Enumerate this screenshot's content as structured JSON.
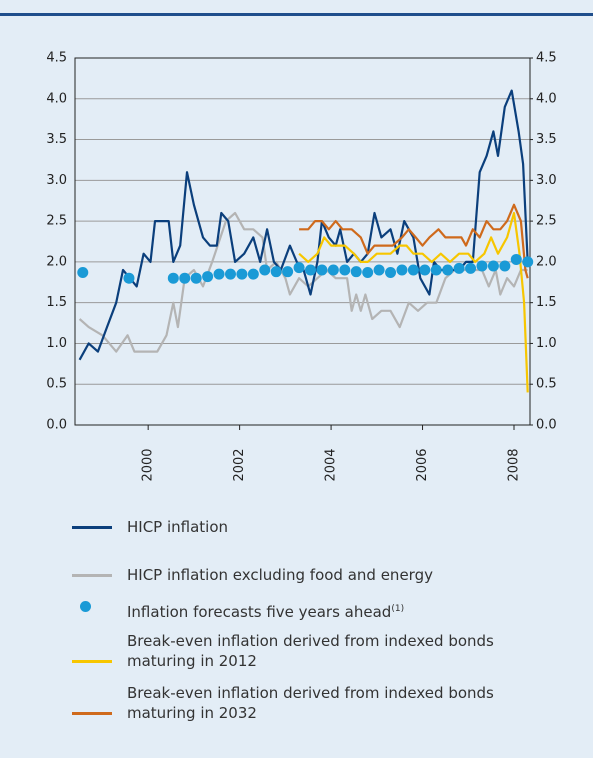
{
  "chart_data": {
    "type": "line",
    "xlim": [
      1998.4,
      2008.35
    ],
    "xticks": [
      2000,
      2002,
      2004,
      2006,
      2008
    ],
    "ylim": [
      0,
      4.5
    ],
    "yticks": [
      {
        "value": 0,
        "label": "0.0"
      },
      {
        "value": 0.5,
        "label": "0.5"
      },
      {
        "value": 1,
        "label": "1.0"
      },
      {
        "value": 1.5,
        "label": "1.5"
      },
      {
        "value": 2,
        "label": "2.0"
      },
      {
        "value": 2.5,
        "label": "2.5"
      },
      {
        "value": 3,
        "label": "3.0"
      },
      {
        "value": 3.5,
        "label": "3.5"
      },
      {
        "value": 4,
        "label": "4.0"
      },
      {
        "value": 4.5,
        "label": "4.5"
      }
    ],
    "y2lim": [
      0,
      4.5
    ],
    "y2ticks": [
      {
        "value": 0,
        "label": "0.0"
      },
      {
        "value": 0.5,
        "label": "0.5"
      },
      {
        "value": 1,
        "label": "1.0"
      },
      {
        "value": 1.5,
        "label": "1.5"
      },
      {
        "value": 2,
        "label": "2.0"
      },
      {
        "value": 2.5,
        "label": "2.5"
      },
      {
        "value": 3,
        "label": "3.0"
      },
      {
        "value": 3.5,
        "label": "3.5"
      },
      {
        "value": 4,
        "label": "4.0"
      },
      {
        "value": 4.5,
        "label": "4.5"
      }
    ],
    "grid": true,
    "series": [
      {
        "name": "HICP inflation",
        "type": "line",
        "color": "#0b3f7c",
        "x": [
          1998.5,
          1998.7,
          1998.9,
          1999.1,
          1999.3,
          1999.45,
          1999.6,
          1999.75,
          1999.9,
          2000.05,
          2000.15,
          2000.3,
          2000.45,
          2000.55,
          2000.7,
          2000.85,
          2001.0,
          2001.2,
          2001.35,
          2001.5,
          2001.6,
          2001.75,
          2001.9,
          2002.1,
          2002.3,
          2002.45,
          2002.6,
          2002.75,
          2002.9,
          2003.1,
          2003.25,
          2003.4,
          2003.55,
          2003.7,
          2003.8,
          2003.95,
          2004.1,
          2004.2,
          2004.35,
          2004.5,
          2004.65,
          2004.8,
          2004.95,
          2005.1,
          2005.3,
          2005.45,
          2005.6,
          2005.8,
          2005.95,
          2006.15,
          2006.25,
          2006.4,
          2006.6,
          2006.8,
          2006.95,
          2007.1,
          2007.25,
          2007.4,
          2007.55,
          2007.65,
          2007.8,
          2007.95,
          2008.1,
          2008.2,
          2008.3
        ],
        "values": [
          0.8,
          1.0,
          0.9,
          1.2,
          1.5,
          1.9,
          1.8,
          1.7,
          2.1,
          2.0,
          2.5,
          2.5,
          2.5,
          2.0,
          2.2,
          3.1,
          2.7,
          2.3,
          2.2,
          2.2,
          2.6,
          2.5,
          2.0,
          2.1,
          2.3,
          2.0,
          2.4,
          2.0,
          1.9,
          2.2,
          2.0,
          1.9,
          1.6,
          2.0,
          2.5,
          2.3,
          2.2,
          2.4,
          2.0,
          2.1,
          2.0,
          2.1,
          2.6,
          2.3,
          2.4,
          2.1,
          2.5,
          2.3,
          1.8,
          1.6,
          2.0,
          1.9,
          1.9,
          1.9,
          2.0,
          2.0,
          3.1,
          3.3,
          3.6,
          3.3,
          3.9,
          4.1,
          3.6,
          3.2,
          2.0
        ]
      },
      {
        "name": "HICP inflation excluding food and energy",
        "type": "line",
        "color": "#b4b4b4",
        "x": [
          1998.5,
          1998.7,
          1999.0,
          1999.3,
          1999.55,
          1999.7,
          2000.0,
          2000.2,
          2000.4,
          2000.55,
          2000.65,
          2000.8,
          2001.0,
          2001.2,
          2001.4,
          2001.7,
          2001.9,
          2002.1,
          2002.3,
          2002.5,
          2002.6,
          2002.8,
          2003.0,
          2003.1,
          2003.3,
          2003.5,
          2003.7,
          2003.9,
          2004.1,
          2004.35,
          2004.45,
          2004.55,
          2004.65,
          2004.75,
          2004.9,
          2005.1,
          2005.3,
          2005.5,
          2005.7,
          2005.9,
          2006.1,
          2006.3,
          2006.5,
          2006.7,
          2006.9,
          2007.1,
          2007.3,
          2007.45,
          2007.6,
          2007.7,
          2007.85,
          2008.0,
          2008.15,
          2008.3
        ],
        "values": [
          1.3,
          1.2,
          1.1,
          0.9,
          1.1,
          0.9,
          0.9,
          0.9,
          1.1,
          1.5,
          1.2,
          1.8,
          1.9,
          1.7,
          2.0,
          2.5,
          2.6,
          2.4,
          2.4,
          2.3,
          1.9,
          2.0,
          1.8,
          1.6,
          1.8,
          1.7,
          1.8,
          1.9,
          1.8,
          1.8,
          1.4,
          1.6,
          1.4,
          1.6,
          1.3,
          1.4,
          1.4,
          1.2,
          1.5,
          1.4,
          1.5,
          1.5,
          1.8,
          1.9,
          1.9,
          1.9,
          1.9,
          1.7,
          1.9,
          1.6,
          1.8,
          1.7,
          1.9,
          1.9
        ]
      },
      {
        "name": "Inflation forecasts five years ahead",
        "footnote": "(1)",
        "type": "scatter",
        "color": "#1a9ad6",
        "x": [
          1998.57,
          1999.58,
          2000.55,
          2000.8,
          2001.05,
          2001.3,
          2001.55,
          2001.8,
          2002.05,
          2002.3,
          2002.55,
          2002.8,
          2003.05,
          2003.3,
          2003.55,
          2003.8,
          2004.05,
          2004.3,
          2004.55,
          2004.8,
          2005.05,
          2005.3,
          2005.55,
          2005.8,
          2006.05,
          2006.3,
          2006.55,
          2006.8,
          2007.05,
          2007.3,
          2007.55,
          2007.8,
          2008.05,
          2008.3
        ],
        "values": [
          1.87,
          1.8,
          1.8,
          1.8,
          1.8,
          1.82,
          1.85,
          1.85,
          1.85,
          1.85,
          1.9,
          1.88,
          1.88,
          1.93,
          1.9,
          1.9,
          1.9,
          1.9,
          1.88,
          1.87,
          1.9,
          1.87,
          1.9,
          1.9,
          1.9,
          1.9,
          1.9,
          1.92,
          1.92,
          1.95,
          1.95,
          1.95,
          2.03,
          2.0
        ]
      },
      {
        "name": "Break-even inflation derived from indexed bonds maturing in 2012",
        "type": "line",
        "color": "#f7c600",
        "x": [
          2003.3,
          2003.5,
          2003.7,
          2003.85,
          2004.0,
          2004.15,
          2004.3,
          2004.5,
          2004.65,
          2004.8,
          2005.0,
          2005.15,
          2005.3,
          2005.5,
          2005.65,
          2005.8,
          2006.0,
          2006.2,
          2006.4,
          2006.6,
          2006.8,
          2007.0,
          2007.15,
          2007.35,
          2007.5,
          2007.65,
          2007.85,
          2008.0,
          2008.12,
          2008.22,
          2008.3
        ],
        "values": [
          2.1,
          2.0,
          2.1,
          2.3,
          2.2,
          2.2,
          2.2,
          2.1,
          2.0,
          2.0,
          2.1,
          2.1,
          2.1,
          2.2,
          2.2,
          2.1,
          2.1,
          2.0,
          2.1,
          2.0,
          2.1,
          2.1,
          2.0,
          2.1,
          2.3,
          2.1,
          2.3,
          2.6,
          2.1,
          1.5,
          0.4
        ]
      },
      {
        "name": "Break-even inflation derived from indexed bonds maturing in 2032",
        "type": "line",
        "color": "#cf6a1c",
        "x": [
          2003.3,
          2003.5,
          2003.65,
          2003.8,
          2003.95,
          2004.1,
          2004.25,
          2004.45,
          2004.65,
          2004.8,
          2004.95,
          2005.15,
          2005.35,
          2005.55,
          2005.7,
          2005.85,
          2006.0,
          2006.15,
          2006.35,
          2006.5,
          2006.7,
          2006.85,
          2006.95,
          2007.1,
          2007.25,
          2007.4,
          2007.55,
          2007.7,
          2007.85,
          2008.0,
          2008.15,
          2008.25,
          2008.3
        ],
        "values": [
          2.4,
          2.4,
          2.5,
          2.5,
          2.4,
          2.5,
          2.4,
          2.4,
          2.3,
          2.1,
          2.2,
          2.2,
          2.2,
          2.3,
          2.4,
          2.3,
          2.2,
          2.3,
          2.4,
          2.3,
          2.3,
          2.3,
          2.2,
          2.4,
          2.3,
          2.5,
          2.4,
          2.4,
          2.5,
          2.7,
          2.5,
          1.9,
          1.8
        ]
      }
    ]
  }
}
